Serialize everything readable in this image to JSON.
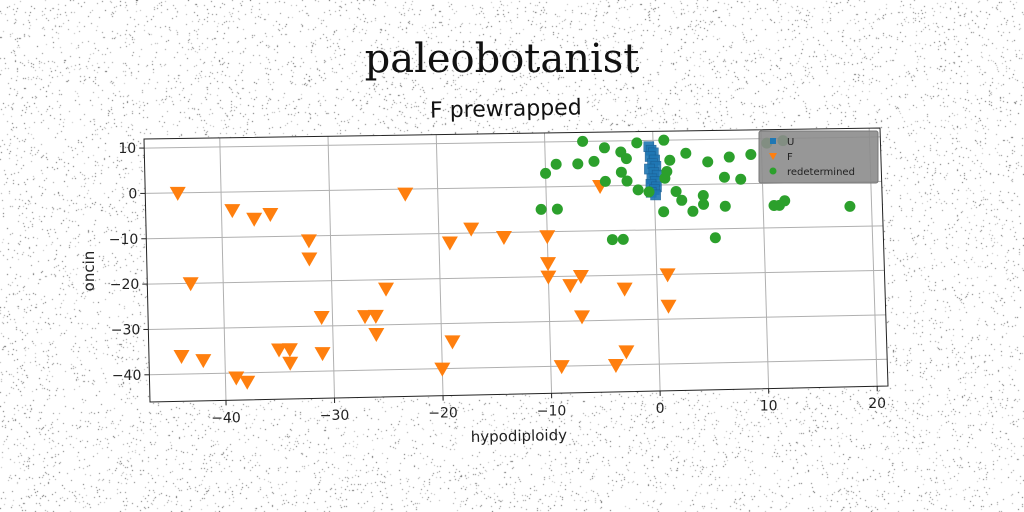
{
  "chart_data": {
    "type": "scatter",
    "suptitle": "paleobotanist",
    "title": "F prewrapped",
    "xlabel": "hypodiploidy",
    "ylabel": "oncin",
    "xlim": [
      -47,
      21
    ],
    "ylim": [
      -46,
      12
    ],
    "xticks": [
      -40,
      -30,
      -20,
      -10,
      0,
      10,
      20
    ],
    "yticks": [
      10,
      0,
      -10,
      -20,
      -30,
      -40
    ],
    "xtick_labels": [
      "−40",
      "−30",
      "−20",
      "−10",
      "0",
      "10",
      "20"
    ],
    "ytick_labels": [
      "10",
      "0",
      "−10",
      "−20",
      "−30",
      "−40"
    ],
    "grid": true,
    "legend_position": "top-right",
    "series": [
      {
        "name": "U",
        "marker": "square",
        "color": "#1f77b4",
        "points": [
          [
            -0.4,
            8.6
          ],
          [
            -0.2,
            7.8
          ],
          [
            0.0,
            7.2
          ],
          [
            -0.3,
            6.4
          ],
          [
            0.1,
            5.6
          ],
          [
            -0.1,
            4.8
          ],
          [
            0.2,
            4.2
          ],
          [
            -0.4,
            3.6
          ],
          [
            0.0,
            2.8
          ],
          [
            0.3,
            2.2
          ],
          [
            -0.2,
            1.4
          ],
          [
            0.1,
            0.8
          ],
          [
            -0.3,
            0.2
          ],
          [
            0.2,
            -0.4
          ],
          [
            0.0,
            -1.0
          ],
          [
            -0.3,
            -1.6
          ],
          [
            0.1,
            -2.2
          ]
        ]
      },
      {
        "name": "F",
        "marker": "triangle_down",
        "color": "#ff7f0e",
        "points": [
          [
            -44,
            0
          ],
          [
            -39,
            -4
          ],
          [
            -37,
            -6
          ],
          [
            -35.5,
            -5
          ],
          [
            -23,
            -1
          ],
          [
            -32,
            -11
          ],
          [
            -32,
            -15
          ],
          [
            -17,
            -9
          ],
          [
            -14,
            -11
          ],
          [
            -19,
            -12
          ],
          [
            -10,
            -11
          ],
          [
            -43,
            -20
          ],
          [
            -10,
            -17
          ],
          [
            -10,
            -20
          ],
          [
            -8,
            -22
          ],
          [
            -7,
            -20
          ],
          [
            -3,
            -23
          ],
          [
            -25,
            -22
          ],
          [
            1,
            -20
          ],
          [
            -31,
            -28
          ],
          [
            -27,
            -28
          ],
          [
            -26,
            -28
          ],
          [
            -26,
            -32
          ],
          [
            -7,
            -29
          ],
          [
            1,
            -27
          ],
          [
            -35,
            -35
          ],
          [
            -34,
            -35
          ],
          [
            -34,
            -38
          ],
          [
            -31,
            -36
          ],
          [
            -19,
            -34
          ],
          [
            -44,
            -36
          ],
          [
            -42,
            -37
          ],
          [
            -39,
            -41
          ],
          [
            -38,
            -42
          ],
          [
            -20,
            -40
          ],
          [
            -9,
            -40
          ],
          [
            -4,
            -40
          ],
          [
            -3,
            -37
          ],
          [
            -5,
            0
          ]
        ]
      },
      {
        "name": "redetermined",
        "marker": "circle",
        "color": "#2ca02c",
        "points": [
          [
            -6.5,
            10
          ],
          [
            -4.5,
            8.5
          ],
          [
            -3,
            7.5
          ],
          [
            -1.5,
            9.5
          ],
          [
            -9,
            5
          ],
          [
            -10,
            3
          ],
          [
            -7,
            5
          ],
          [
            -5.5,
            5.5
          ],
          [
            -2.5,
            6
          ],
          [
            -3,
            3
          ],
          [
            -4.5,
            1
          ],
          [
            -2.5,
            1
          ],
          [
            -1.5,
            -1
          ],
          [
            -0.5,
            -1.5
          ],
          [
            1,
            1.5
          ],
          [
            1.2,
            3
          ],
          [
            1.5,
            5.5
          ],
          [
            1,
            10
          ],
          [
            3,
            7
          ],
          [
            5,
            5
          ],
          [
            7,
            6
          ],
          [
            9,
            6.5
          ],
          [
            12,
            9.5
          ],
          [
            10.5,
            9
          ],
          [
            6.5,
            1.5
          ],
          [
            8,
            1
          ],
          [
            2,
            -1.5
          ],
          [
            2.5,
            -3.5
          ],
          [
            4.5,
            -2.5
          ],
          [
            4.5,
            -4.5
          ],
          [
            6.5,
            -5
          ],
          [
            3.5,
            -6
          ],
          [
            0.8,
            -6
          ],
          [
            -10.5,
            -5
          ],
          [
            -9,
            -5
          ],
          [
            -4,
            -12
          ],
          [
            -3,
            -12
          ],
          [
            5.5,
            -12
          ],
          [
            11,
            -5
          ],
          [
            11.5,
            -5
          ],
          [
            12,
            -4
          ],
          [
            18,
            -5.5
          ]
        ]
      }
    ]
  }
}
